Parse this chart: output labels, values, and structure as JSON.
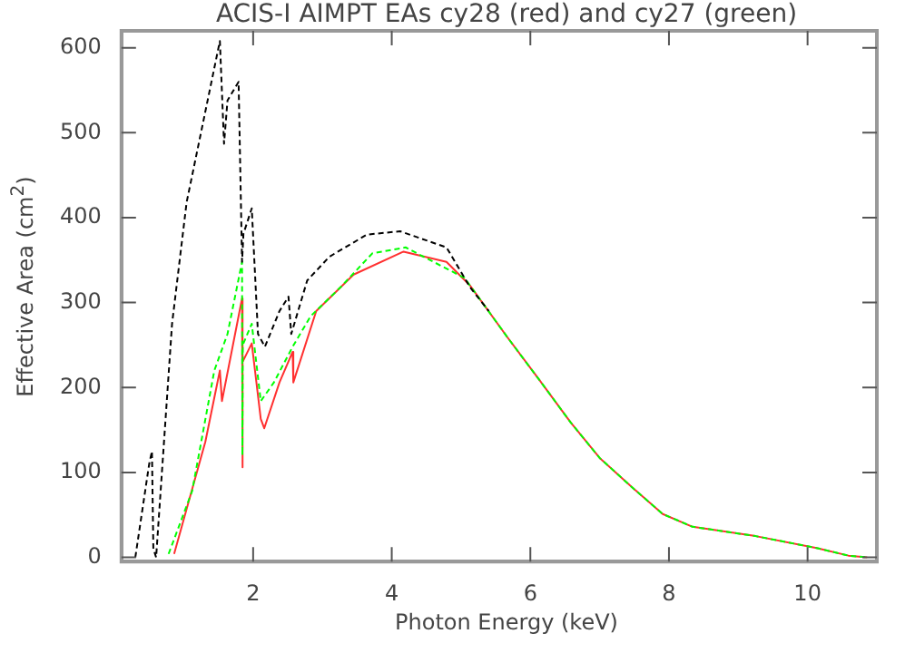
{
  "chart_data": {
    "type": "line",
    "title": "ACIS-I AIMPT EAs cy28 (red) and cy27 (green)",
    "xlabel": "Photon Energy (keV)",
    "ylabel": "Effective Area (cm$^{2}$)",
    "xlim": [
      0.1,
      11
    ],
    "xticks": [
      2,
      4,
      6,
      8,
      10
    ],
    "ylim": [
      -5,
      620
    ],
    "yticks": [
      0,
      100,
      200,
      300,
      400,
      500,
      600
    ],
    "grid": false,
    "legend": false,
    "marker": "none",
    "series": [
      {
        "color": "#000000",
        "line_style": "dashed",
        "x": [
          0.3,
          0.5,
          0.54,
          0.56,
          0.6,
          0.83,
          1.04,
          1.52,
          1.58,
          1.63,
          1.79,
          1.84,
          1.86,
          1.98,
          2.07,
          2.17,
          2.38,
          2.51,
          2.55,
          2.78,
          3.1,
          3.64,
          4.12,
          4.79,
          5.13,
          5.4
        ],
        "values": [
          0,
          110,
          125,
          10,
          0,
          275,
          418,
          608,
          487,
          538,
          560,
          348,
          381,
          411,
          263,
          248,
          290,
          307,
          263,
          326,
          354,
          380,
          384,
          365,
          318,
          290
        ]
      },
      {
        "color": "#00ff00",
        "line_style": "dashed",
        "x": [
          0.78,
          1.12,
          1.44,
          1.63,
          1.84,
          1.845,
          1.85,
          1.98,
          2.11,
          2.3,
          2.57,
          2.83,
          3.26,
          3.72,
          4.2,
          5.05,
          5.67,
          6.12,
          6.58,
          7.0,
          7.46,
          7.91,
          8.34,
          9.25,
          10.13,
          10.59,
          10.86
        ],
        "values": [
          4,
          78,
          220,
          263,
          348,
          120,
          250,
          275,
          184,
          206,
          248,
          284,
          318,
          358,
          365,
          329,
          259,
          210,
          159,
          117,
          83,
          51,
          36,
          25,
          11,
          2,
          0
        ]
      },
      {
        "color": "#ff3030",
        "line_style": "solid",
        "x": [
          0.86,
          1.31,
          1.52,
          1.55,
          1.84,
          1.845,
          1.85,
          1.98,
          2.11,
          2.16,
          2.38,
          2.57,
          2.58,
          2.91,
          3.45,
          4.17,
          4.79,
          5.13,
          5.67,
          6.12,
          6.58,
          7.0,
          7.46,
          7.91,
          8.34,
          9.25,
          10.13,
          10.59,
          10.86
        ],
        "values": [
          4,
          136,
          220,
          184,
          305,
          106,
          230,
          252,
          163,
          152,
          206,
          242,
          206,
          290,
          333,
          360,
          348,
          320,
          259,
          210,
          159,
          117,
          83,
          51,
          36,
          25,
          11,
          2,
          0
        ]
      }
    ]
  }
}
